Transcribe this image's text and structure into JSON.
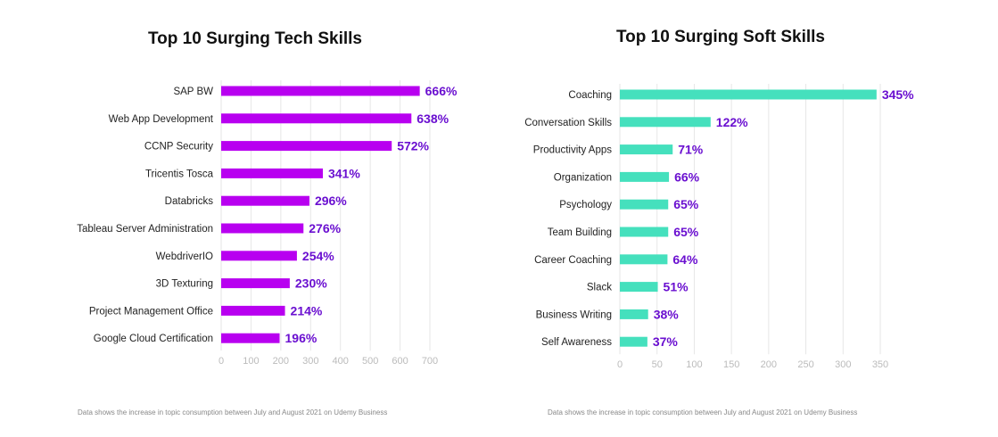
{
  "chart_data": [
    {
      "type": "bar",
      "orientation": "horizontal",
      "title": "Top 10 Surging Tech Skills",
      "categories": [
        "SAP BW",
        "Web App Development",
        "CCNP Security",
        "Tricentis Tosca",
        "Databricks",
        "Tableau Server Administration",
        "WebdriverIO",
        "3D Texturing",
        "Project Management Office",
        "Google Cloud Certification"
      ],
      "values": [
        666,
        638,
        572,
        341,
        296,
        276,
        254,
        230,
        214,
        196
      ],
      "value_labels": [
        "666%",
        "638%",
        "572%",
        "341%",
        "296%",
        "276%",
        "254%",
        "230%",
        "214%",
        "196%"
      ],
      "xlim": [
        0,
        700
      ],
      "xticks": [
        0,
        100,
        200,
        300,
        400,
        500,
        600,
        700
      ],
      "tick_labels": [
        "0",
        "100",
        "200",
        "300",
        "400",
        "500",
        "600",
        "700"
      ],
      "grid": true,
      "bar_color": "#b800f0",
      "label_color": "#6a0fd0",
      "footnote": "Data shows the increase in topic consumption between July and August 2021 on Udemy Business"
    },
    {
      "type": "bar",
      "orientation": "horizontal",
      "title": "Top 10 Surging Soft Skills",
      "categories": [
        "Coaching",
        "Conversation Skills",
        "Productivity Apps",
        "Organization",
        "Psychology",
        "Team Building",
        "Career Coaching",
        "Slack",
        "Business Writing",
        "Self Awareness"
      ],
      "values": [
        345,
        122,
        71,
        66,
        65,
        65,
        64,
        51,
        38,
        37
      ],
      "value_labels": [
        "345%",
        "122%",
        "71%",
        "66%",
        "65%",
        "65%",
        "64%",
        "51%",
        "38%",
        "37%"
      ],
      "xlim": [
        0,
        350
      ],
      "xticks": [
        0,
        50,
        100,
        150,
        200,
        250,
        300,
        350
      ],
      "tick_labels": [
        "0",
        "50",
        "100",
        "150",
        "200",
        "250",
        "300",
        "350"
      ],
      "grid": true,
      "bar_color": "#45e0bd",
      "label_color": "#6a0fd0",
      "footnote": "Data shows the increase in topic consumption between July and August 2021 on Udemy Business"
    }
  ]
}
